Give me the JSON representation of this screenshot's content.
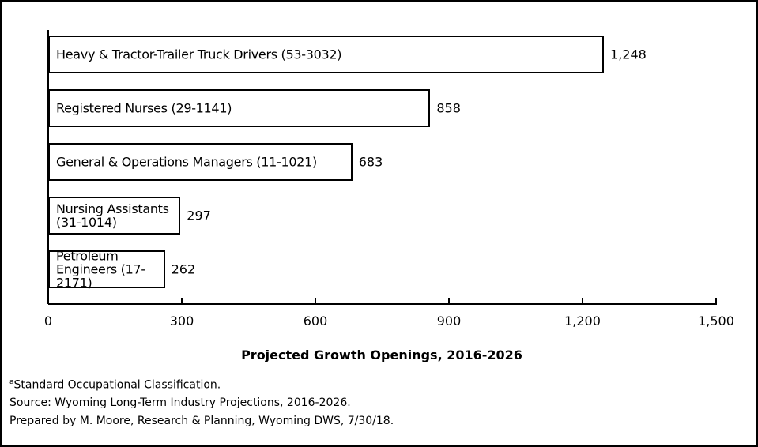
{
  "chart_data": {
    "type": "bar",
    "orientation": "horizontal",
    "categories": [
      "Heavy & Tractor-Trailer Truck Drivers (53-3032)",
      "Registered Nurses (29-1141)",
      "General & Operations Managers (11-1021)",
      "Nursing Assistants (31-1014)",
      "Petroleum Engineers (17-2171)"
    ],
    "values": [
      1248,
      858,
      683,
      297,
      262
    ],
    "value_labels": [
      "1,248",
      "858",
      "683",
      "297",
      "262"
    ],
    "color": "#ffffff",
    "xlim": [
      0,
      1500
    ],
    "xticks": [
      0,
      300,
      600,
      900,
      {
        "value": 1200,
        "label": "1,200"
      },
      {
        "value": 1500,
        "label": "1,500"
      }
    ],
    "xlabel": "Projected Growth Openings, 2016-2026",
    "footnote_marker": "a",
    "notes": [
      "Standard Occupational Classification.",
      "Source: Wyoming Long-Term Industry Projections, 2016-2026.",
      "Prepared by M. Moore, Research & Planning, Wyoming DWS, 7/30/18."
    ]
  }
}
